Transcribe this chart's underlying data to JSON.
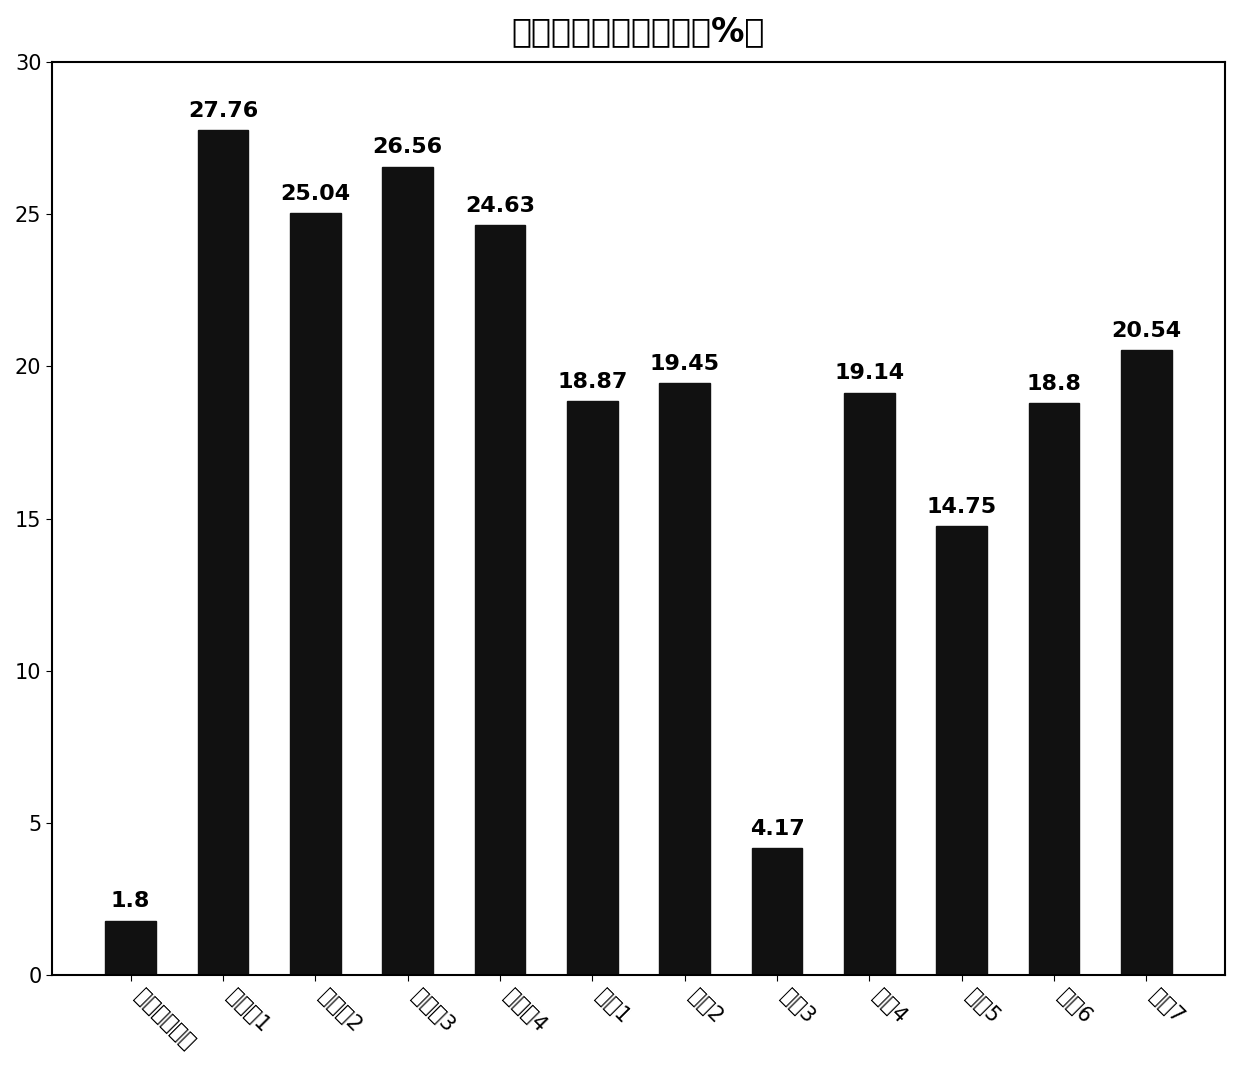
{
  "title": "可溶性膺食纤维含量（%）",
  "categories": [
    "原青稞若叶粉",
    "实施兩1",
    "实施兩2",
    "实施兩3",
    "实施兩4",
    "对比1",
    "对比2",
    "对比3",
    "对比4",
    "对比5",
    "对比6",
    "对比7"
  ],
  "values": [
    1.8,
    27.76,
    25.04,
    26.56,
    24.63,
    18.87,
    19.45,
    4.17,
    19.14,
    14.75,
    18.8,
    20.54
  ],
  "bar_color": "#111111",
  "ylim": [
    0,
    30
  ],
  "yticks": [
    0,
    5,
    10,
    15,
    20,
    25,
    30
  ],
  "label_fontsize": 16,
  "title_fontsize": 24,
  "tick_fontsize": 15,
  "background_color": "#ffffff"
}
